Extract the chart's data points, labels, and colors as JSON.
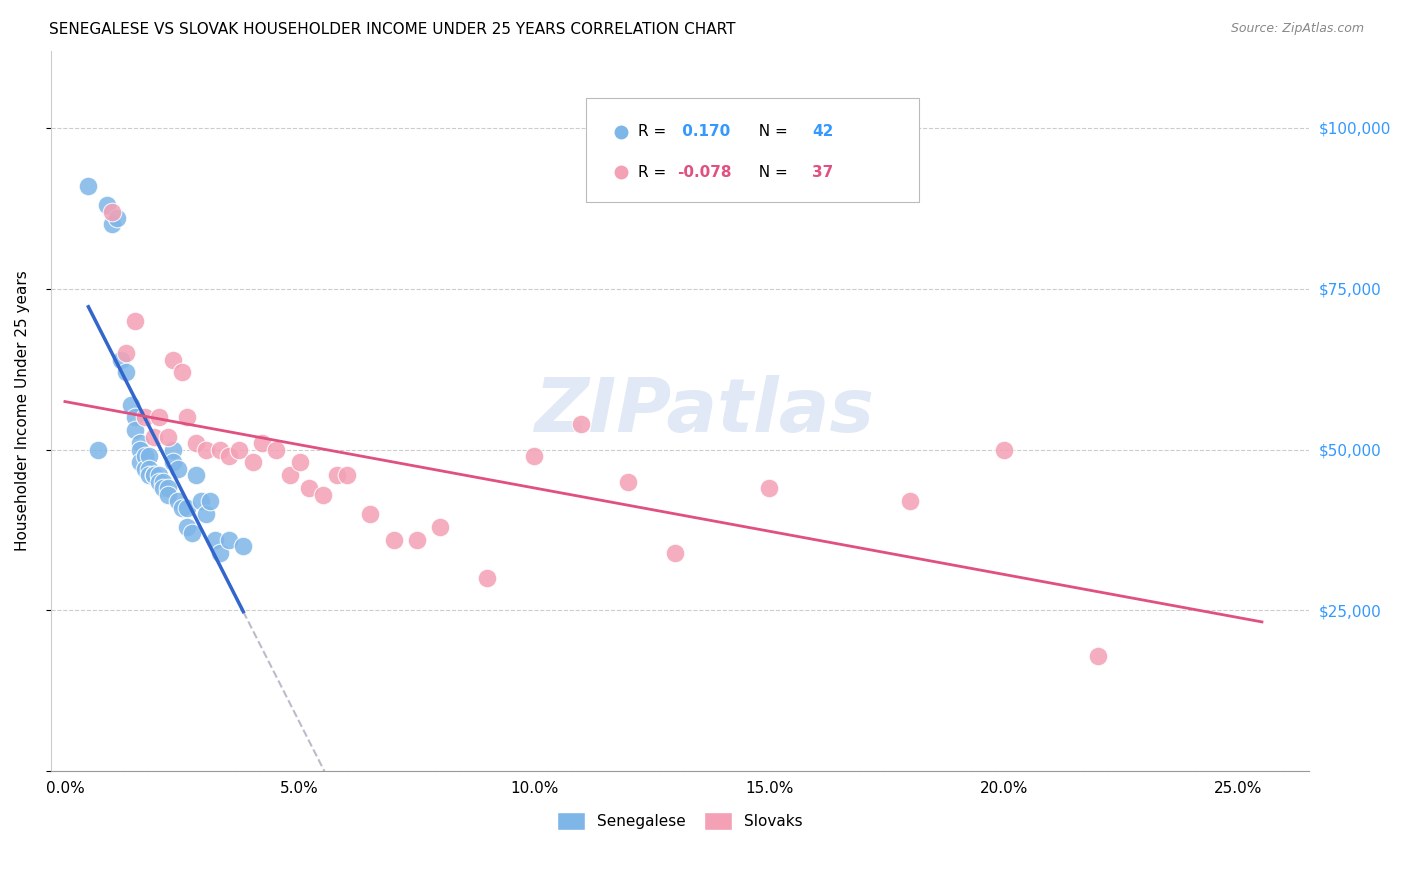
{
  "title": "SENEGALESE VS SLOVAK HOUSEHOLDER INCOME UNDER 25 YEARS CORRELATION CHART",
  "source": "Source: ZipAtlas.com",
  "ylabel": "Householder Income Under 25 years",
  "xlabel_ticks": [
    "0.0%",
    "5.0%",
    "10.0%",
    "15.0%",
    "20.0%",
    "25.0%"
  ],
  "xlabel_vals": [
    0.0,
    0.05,
    0.1,
    0.15,
    0.2,
    0.25
  ],
  "ylabel_ticks": [
    0,
    25000,
    50000,
    75000,
    100000
  ],
  "ylabel_labels": [
    "",
    "$25,000",
    "$50,000",
    "$75,000",
    "$100,000"
  ],
  "xlim": [
    -0.003,
    0.265
  ],
  "ylim": [
    0,
    112000
  ],
  "watermark": "ZIPatlas",
  "senegalese_R": 0.17,
  "senegalese_N": 42,
  "slovak_R": -0.078,
  "slovak_N": 37,
  "senegalese_color": "#7EB6E8",
  "slovak_color": "#F4A0B5",
  "trend_blue": "#3366CC",
  "trend_pink": "#E05080",
  "trend_dashed_color": "#BBBBCC",
  "senegalese_x": [
    0.005,
    0.007,
    0.009,
    0.01,
    0.011,
    0.012,
    0.013,
    0.014,
    0.015,
    0.015,
    0.016,
    0.016,
    0.016,
    0.017,
    0.017,
    0.018,
    0.018,
    0.018,
    0.019,
    0.019,
    0.02,
    0.02,
    0.021,
    0.021,
    0.022,
    0.022,
    0.023,
    0.023,
    0.024,
    0.024,
    0.025,
    0.026,
    0.026,
    0.027,
    0.028,
    0.029,
    0.03,
    0.031,
    0.032,
    0.033,
    0.035,
    0.038
  ],
  "senegalese_y": [
    91000,
    50000,
    88000,
    85000,
    86000,
    64000,
    62000,
    57000,
    55000,
    53000,
    51000,
    50000,
    48000,
    49000,
    47000,
    49000,
    47000,
    46000,
    46000,
    46000,
    46000,
    45000,
    45000,
    44000,
    44000,
    43000,
    50000,
    48000,
    47000,
    42000,
    41000,
    41000,
    38000,
    37000,
    46000,
    42000,
    40000,
    42000,
    36000,
    34000,
    36000,
    35000
  ],
  "slovak_x": [
    0.01,
    0.013,
    0.015,
    0.017,
    0.019,
    0.02,
    0.022,
    0.023,
    0.025,
    0.026,
    0.028,
    0.03,
    0.033,
    0.035,
    0.037,
    0.04,
    0.042,
    0.045,
    0.048,
    0.05,
    0.052,
    0.055,
    0.058,
    0.06,
    0.065,
    0.07,
    0.075,
    0.08,
    0.09,
    0.1,
    0.11,
    0.12,
    0.13,
    0.15,
    0.18,
    0.2,
    0.22
  ],
  "slovak_y": [
    87000,
    65000,
    70000,
    55000,
    52000,
    55000,
    52000,
    64000,
    62000,
    55000,
    51000,
    50000,
    50000,
    49000,
    50000,
    48000,
    51000,
    50000,
    46000,
    48000,
    44000,
    43000,
    46000,
    46000,
    40000,
    36000,
    36000,
    38000,
    30000,
    49000,
    54000,
    45000,
    34000,
    44000,
    42000,
    50000,
    18000
  ]
}
